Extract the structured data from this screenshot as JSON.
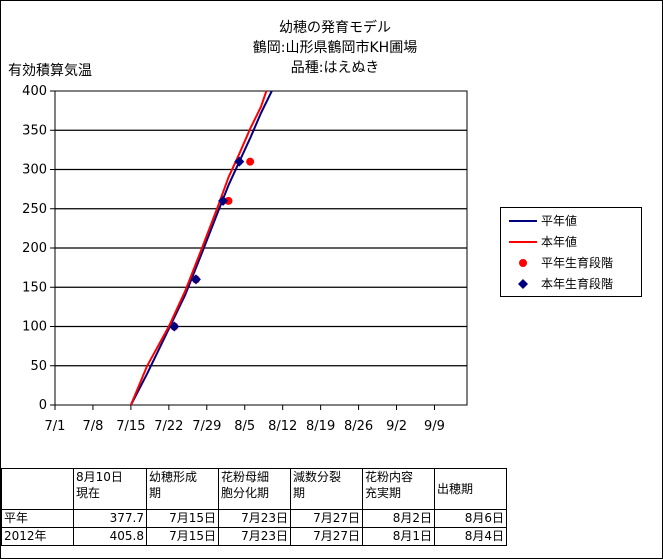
{
  "title_lines": [
    "幼穂の発育モデル",
    "鶴岡:山形県鶴岡市KH圃場",
    "品種:はえぬき"
  ],
  "chart_data": {
    "type": "line",
    "title": "幼穂の発育モデル",
    "subtitle": [
      "鶴岡:山形県鶴岡市KH圃場",
      "品種:はえぬき"
    ],
    "ylabel": "有効積算気温",
    "xlabel": "",
    "ylim": [
      0,
      400
    ],
    "y_ticks": [
      0,
      50,
      100,
      150,
      200,
      250,
      300,
      350,
      400
    ],
    "x_range_days": [
      "2012-07-01",
      "2012-09-15"
    ],
    "x_tick_labels": [
      "7/1",
      "7/8",
      "7/15",
      "7/22",
      "7/29",
      "8/5",
      "8/12",
      "8/19",
      "8/26",
      "9/2",
      "9/9"
    ],
    "x_tick_dates": [
      "07-01",
      "07-08",
      "07-15",
      "07-22",
      "07-29",
      "08-05",
      "08-12",
      "08-19",
      "08-26",
      "09-02",
      "09-09"
    ],
    "grid": "horizontal",
    "legend_position": "right",
    "series": [
      {
        "name": "平年値",
        "kind": "line",
        "color": "#000080",
        "points": [
          [
            "07-15",
            0
          ],
          [
            "07-18",
            40
          ],
          [
            "07-22",
            97
          ],
          [
            "07-25",
            140
          ],
          [
            "07-28",
            192
          ],
          [
            "07-31",
            245
          ],
          [
            "08-02",
            280
          ],
          [
            "08-04",
            310
          ],
          [
            "08-06",
            340
          ],
          [
            "08-08",
            372
          ],
          [
            "08-10",
            400
          ]
        ]
      },
      {
        "name": "本年値",
        "kind": "line",
        "color": "#ff0000",
        "points": [
          [
            "07-15",
            0
          ],
          [
            "07-18",
            50
          ],
          [
            "07-22",
            100
          ],
          [
            "07-25",
            145
          ],
          [
            "07-28",
            198
          ],
          [
            "07-31",
            252
          ],
          [
            "08-02",
            290
          ],
          [
            "08-04",
            320
          ],
          [
            "08-06",
            352
          ],
          [
            "08-08",
            380
          ],
          [
            "08-09",
            400
          ]
        ]
      },
      {
        "name": "平年生育段階",
        "kind": "marker",
        "marker": "circle",
        "color": "#ff0000",
        "points": [
          [
            "07-23",
            100
          ],
          [
            "07-27",
            160
          ],
          [
            "08-02",
            260
          ],
          [
            "08-06",
            310
          ]
        ]
      },
      {
        "name": "本年生育段階",
        "kind": "marker",
        "marker": "diamond",
        "color": "#000080",
        "points": [
          [
            "07-23",
            100
          ],
          [
            "07-27",
            160
          ],
          [
            "08-01",
            260
          ],
          [
            "08-04",
            310
          ]
        ]
      }
    ]
  },
  "table": {
    "header": [
      "",
      "8月10日\n現在",
      "幼穂形成\n期",
      "花粉母細\n胞分化期",
      "減数分裂\n期",
      "花粉内容\n充実期",
      "出穂期"
    ],
    "rows": [
      [
        "平年",
        "377.7",
        "7月15日",
        "7月23日",
        "7月27日",
        "8月2日",
        "8月6日"
      ],
      [
        "2012年",
        "405.8",
        "7月15日",
        "7月23日",
        "7月27日",
        "8月1日",
        "8月4日"
      ]
    ]
  }
}
